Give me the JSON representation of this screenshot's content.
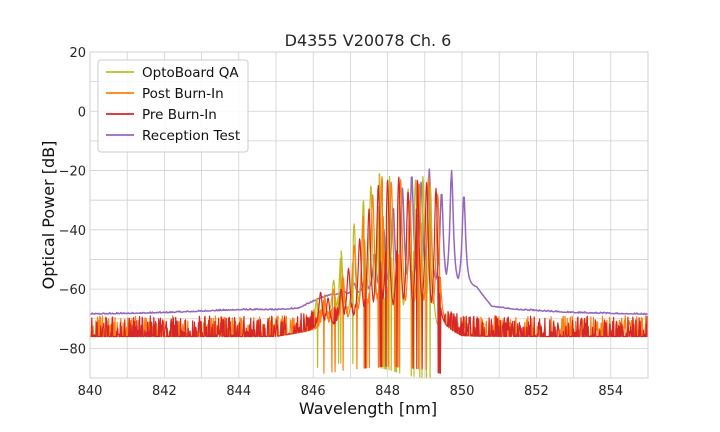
{
  "chart_data": {
    "type": "line",
    "title": "D4355 V20078 Ch. 6",
    "xlabel": "Wavelength [nm]",
    "ylabel": "Optical Power [dB]",
    "xlim": [
      840,
      855
    ],
    "ylim": [
      -90,
      20
    ],
    "xticks": [
      840,
      842,
      844,
      846,
      848,
      850,
      852,
      854
    ],
    "yticks": [
      20,
      0,
      -20,
      -40,
      -60,
      -80
    ],
    "xtick_labels": [
      "840",
      "842",
      "844",
      "846",
      "848",
      "850",
      "852",
      "854"
    ],
    "ytick_labels": [
      "20",
      "0",
      "−20",
      "−40",
      "−60",
      "−80"
    ],
    "grid": true,
    "legend_position": "top-left",
    "series": [
      {
        "name": "OptoBoard QA",
        "color": "#bcbd22",
        "noise_floor": [
          [
            845.95,
            -72
          ],
          [
            846.5,
            -70
          ],
          [
            847.0,
            -70
          ],
          [
            847.5,
            -71
          ],
          [
            848.0,
            -72
          ],
          [
            848.5,
            -74
          ],
          [
            849.0,
            -75
          ],
          [
            849.35,
            -76
          ]
        ],
        "peaks": [
          [
            846.1,
            -63
          ],
          [
            846.3,
            -65
          ],
          [
            846.55,
            -57
          ],
          [
            846.75,
            -47
          ],
          [
            847.1,
            -38
          ],
          [
            847.35,
            -30
          ],
          [
            847.55,
            -25
          ],
          [
            847.78,
            -20.5
          ],
          [
            848.05,
            -22
          ],
          [
            848.3,
            -24
          ],
          [
            848.55,
            -26
          ],
          [
            848.75,
            -23
          ],
          [
            848.95,
            -22
          ],
          [
            849.15,
            -25
          ]
        ]
      },
      {
        "name": "Post Burn-In",
        "color": "#ff7f0e",
        "noise_floor": [
          [
            840.0,
            -76
          ],
          [
            845.0,
            -76
          ],
          [
            846.0,
            -74
          ],
          [
            847.0,
            -72
          ],
          [
            848.0,
            -71
          ],
          [
            849.0,
            -72
          ],
          [
            849.6,
            -74
          ],
          [
            850.0,
            -76
          ],
          [
            855.0,
            -76
          ]
        ],
        "peaks": [
          [
            846.3,
            -62
          ],
          [
            846.55,
            -60
          ],
          [
            846.8,
            -55
          ],
          [
            847.1,
            -45
          ],
          [
            847.35,
            -35
          ],
          [
            847.6,
            -28
          ],
          [
            847.85,
            -22
          ],
          [
            848.1,
            -24
          ],
          [
            848.35,
            -23
          ],
          [
            848.6,
            -30
          ],
          [
            848.85,
            -24
          ],
          [
            849.1,
            -22
          ],
          [
            849.35,
            -28
          ]
        ]
      },
      {
        "name": "Pre Burn-In",
        "color": "#d62728",
        "noise_floor": [
          [
            840.0,
            -76
          ],
          [
            845.0,
            -76
          ],
          [
            846.0,
            -74
          ],
          [
            847.0,
            -72
          ],
          [
            848.0,
            -71
          ],
          [
            849.0,
            -72
          ],
          [
            849.6,
            -74
          ],
          [
            850.0,
            -76
          ],
          [
            855.0,
            -76
          ]
        ],
        "peaks": [
          [
            846.2,
            -61
          ],
          [
            846.4,
            -63
          ],
          [
            846.75,
            -60
          ],
          [
            846.95,
            -53
          ],
          [
            847.25,
            -43
          ],
          [
            847.5,
            -33
          ],
          [
            847.75,
            -25
          ],
          [
            848.0,
            -23
          ],
          [
            848.3,
            -22
          ],
          [
            848.55,
            -27
          ],
          [
            848.8,
            -23
          ],
          [
            849.05,
            -24
          ],
          [
            849.3,
            -26
          ]
        ]
      },
      {
        "name": "Reception Test",
        "color": "#9467bd",
        "noise_floor": [
          [
            840.0,
            -68.5
          ],
          [
            842.0,
            -68
          ],
          [
            844.0,
            -67
          ],
          [
            845.0,
            -67
          ],
          [
            845.6,
            -66.5
          ],
          [
            846.2,
            -63
          ],
          [
            846.5,
            -62
          ],
          [
            850.4,
            -60
          ],
          [
            850.8,
            -66
          ],
          [
            851.5,
            -67
          ],
          [
            853.0,
            -68
          ],
          [
            855.0,
            -68.5
          ]
        ],
        "peaks": [
          [
            846.5,
            -63
          ],
          [
            846.8,
            -60
          ],
          [
            847.1,
            -58
          ],
          [
            847.4,
            -55
          ],
          [
            847.65,
            -48
          ],
          [
            847.9,
            -40
          ],
          [
            848.15,
            -32
          ],
          [
            848.4,
            -26
          ],
          [
            848.65,
            -21
          ],
          [
            848.9,
            -24
          ],
          [
            849.12,
            -19.5
          ],
          [
            849.45,
            -27
          ],
          [
            849.72,
            -20
          ],
          [
            850.05,
            -28
          ]
        ]
      }
    ]
  }
}
